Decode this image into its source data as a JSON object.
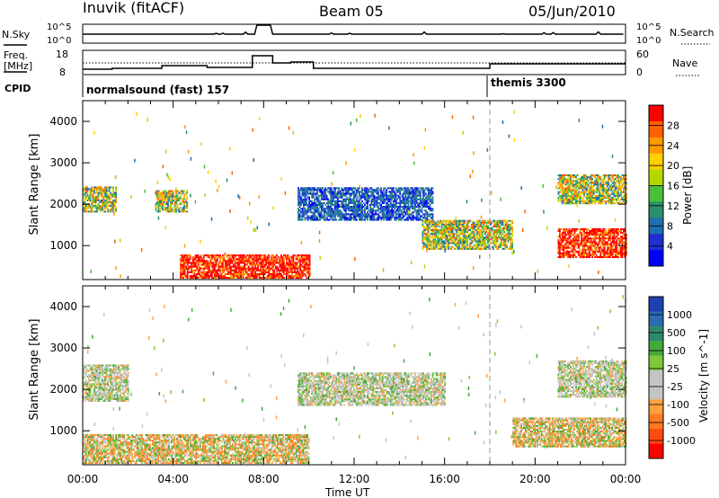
{
  "header": {
    "title": "Inuvik (fitACF)",
    "beam": "Beam 05",
    "date": "05/Jun/2010"
  },
  "top_panels": {
    "nsky_label": "N.Sky",
    "nsky_ticks": [
      "10^5",
      "10^0"
    ],
    "nsearch_label": "N.Search",
    "nsearch_ticks": [
      "10^5",
      "10^0"
    ],
    "freq_label": [
      "Freq.",
      "[MHz]"
    ],
    "freq_ticks": [
      "18",
      "8"
    ],
    "nave_label": "Nave",
    "nave_ticks": [
      "60",
      "0"
    ],
    "cpid_label": "CPID",
    "programs": [
      {
        "name": "normalsound (fast) 157",
        "start": "00:00"
      },
      {
        "name": "themis 3300",
        "start": "18:00"
      }
    ]
  },
  "colorbars": {
    "power": {
      "label": "Power [dB]",
      "ticks": [
        "28",
        "24",
        "20",
        "16",
        "12",
        "8",
        "4"
      ],
      "colors": [
        "#ff0000",
        "#ff6000",
        "#ff9a00",
        "#ffd000",
        "#b6d600",
        "#4bbf3a",
        "#2a8f6a",
        "#1f6fb0",
        "#2030d0",
        "#0000ff"
      ]
    },
    "velocity": {
      "label": "Velocity [m s^-1]",
      "ticks": [
        "1000",
        "500",
        "100",
        "25",
        "-25",
        "-100",
        "-500",
        "-1000"
      ],
      "colors": [
        "#1d3fb0",
        "#2a6ab0",
        "#2e8a6e",
        "#44a83a",
        "#7ec83a",
        "#c4c4c4",
        "#c4c4c4",
        "#ffa040",
        "#ff7a20",
        "#ff4a10",
        "#ff0000"
      ]
    }
  },
  "chart_data": [
    {
      "type": "heatmap",
      "name": "Power",
      "ylabel": "Slant Range [km]",
      "xlabel": "Time UT",
      "x_ticks": [
        "00:00",
        "04:00",
        "08:00",
        "12:00",
        "16:00",
        "20:00",
        "00:00"
      ],
      "y_ticks": [
        1000,
        2000,
        3000,
        4000
      ],
      "ylim": [
        180,
        4500
      ],
      "xlim_hours": [
        0,
        24
      ],
      "program_change_hour": 18,
      "regions": [
        {
          "t0": 0,
          "t1": 1.5,
          "r0": 1800,
          "r1": 2400,
          "level": "mixed"
        },
        {
          "t0": 3.2,
          "t1": 4.6,
          "r0": 1800,
          "r1": 2300,
          "level": "mixed"
        },
        {
          "t0": 4.3,
          "t1": 10,
          "r0": 200,
          "r1": 750,
          "level": "high"
        },
        {
          "t0": 9.5,
          "t1": 15.5,
          "r0": 1600,
          "r1": 2400,
          "level": "low"
        },
        {
          "t0": 15,
          "t1": 19,
          "r0": 900,
          "r1": 1600,
          "level": "mixed"
        },
        {
          "t0": 21,
          "t1": 24,
          "r0": 700,
          "r1": 1400,
          "level": "high"
        },
        {
          "t0": 21,
          "t1": 24,
          "r0": 2000,
          "r1": 2700,
          "level": "mixed"
        }
      ]
    },
    {
      "type": "heatmap",
      "name": "Velocity",
      "ylabel": "Slant Range [km]",
      "xlabel": "Time UT",
      "x_ticks": [
        "00:00",
        "04:00",
        "08:00",
        "12:00",
        "16:00",
        "20:00",
        "00:00"
      ],
      "y_ticks": [
        1000,
        2000,
        3000,
        4000
      ],
      "ylim": [
        180,
        4500
      ],
      "xlim_hours": [
        0,
        24
      ],
      "program_change_hour": 18,
      "regions": [
        {
          "t0": 0,
          "t1": 2,
          "r0": 1700,
          "r1": 2600,
          "level": "slow"
        },
        {
          "t0": 0,
          "t1": 10,
          "r0": 200,
          "r1": 900,
          "level": "away"
        },
        {
          "t0": 9.5,
          "t1": 16,
          "r0": 1600,
          "r1": 2400,
          "level": "slow"
        },
        {
          "t0": 19,
          "t1": 24,
          "r0": 600,
          "r1": 1300,
          "level": "away"
        },
        {
          "t0": 21,
          "t1": 24,
          "r0": 1800,
          "r1": 2700,
          "level": "slow"
        }
      ]
    }
  ]
}
